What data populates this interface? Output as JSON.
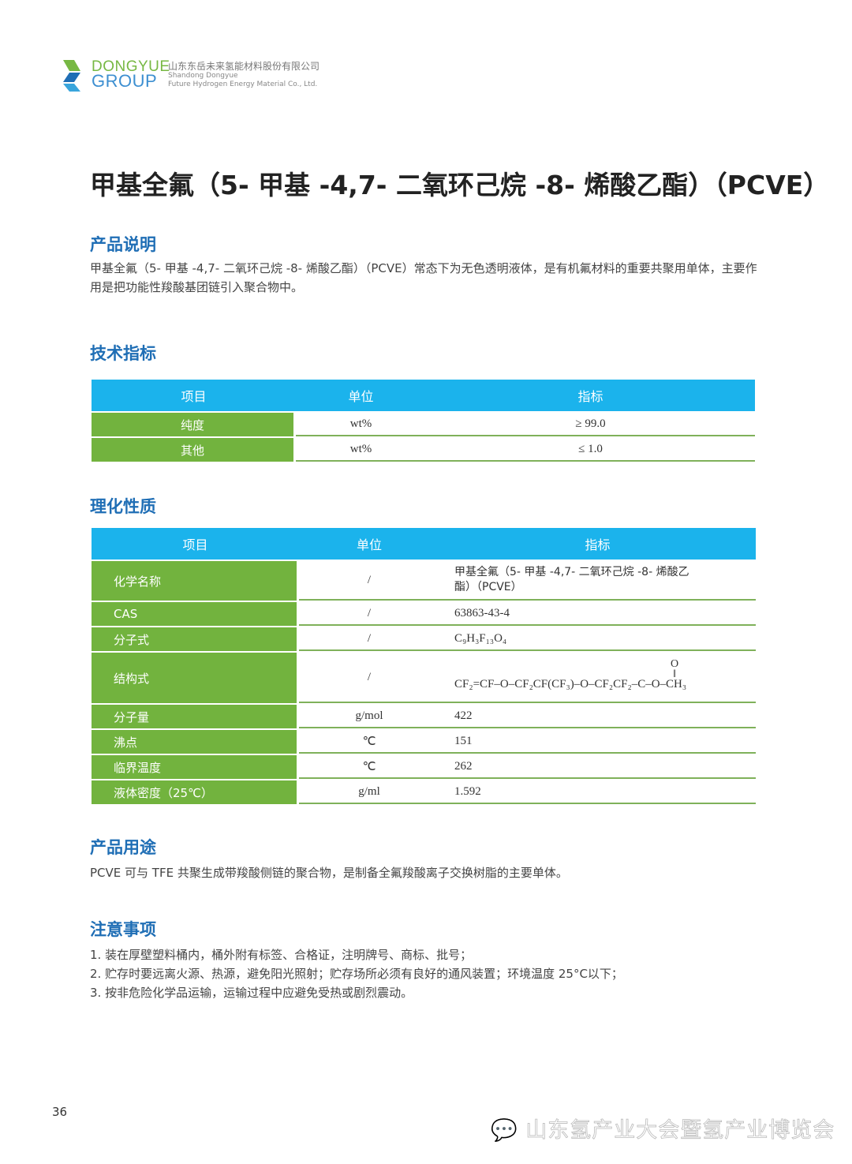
{
  "header": {
    "logo_line1": "DONGYUE",
    "logo_line2": "GROUP",
    "company_cn": "山东东岳未来氢能材料股份有限公司",
    "company_en1": "Shandong Dongyue",
    "company_en2": "Future Hydrogen Energy Material Co., Ltd.",
    "brand_colors": [
      "#77b843",
      "#3d8fd1"
    ]
  },
  "title": "甲基全氟（5- 甲基 -4,7- 二氧环己烷 -8- 烯酸乙酯）（PCVE）",
  "sections": {
    "description": {
      "heading": "产品说明",
      "text": "甲基全氟（5- 甲基 -4,7- 二氧环己烷 -8- 烯酸乙酯）（PCVE）常态下为无色透明液体，是有机氟材料的重要共聚用单体，主要作用是把功能性羧酸基团链引入聚合物中。"
    },
    "specs": {
      "heading": "技术指标",
      "columns": [
        "项目",
        "单位",
        "指标"
      ],
      "rows": [
        [
          "纯度",
          "wt%",
          "≥ 99.0"
        ],
        [
          "其他",
          "wt%",
          "≤ 1.0"
        ]
      ]
    },
    "properties": {
      "heading": "理化性质",
      "columns": [
        "项目",
        "单位",
        "指标"
      ],
      "rows": [
        [
          "化学名称",
          "/",
          "甲基全氟（5- 甲基 -4,7- 二氧环己烷 -8- 烯酸乙酯）（PCVE）"
        ],
        [
          "CAS",
          "/",
          "63863-43-4"
        ],
        [
          "分子式",
          "/",
          "C₉H₃F₁₃O₄"
        ],
        [
          "结构式",
          "/",
          "CF₂=CF–O–CF₂CF(CF₃)–O–CF₂CF₂–C–O–CH₃"
        ],
        [
          "分子量",
          "g/mol",
          "422"
        ],
        [
          "沸点",
          "℃",
          "151"
        ],
        [
          "临界温度",
          "℃",
          "262"
        ],
        [
          "液体密度（25℃）",
          "g/ml",
          "1.592"
        ]
      ],
      "carbonyl": "O"
    },
    "usage": {
      "heading": "产品用途",
      "text": "PCVE 可与 TFE 共聚生成带羧酸侧链的聚合物，是制备全氟羧酸离子交换树脂的主要单体。"
    },
    "notes": {
      "heading": "注意事项",
      "items": [
        "1. 装在厚壁塑料桶内，桶外附有标签、合格证，注明牌号、商标、批号；",
        "2. 贮存时要远离火源、热源，避免阳光照射；贮存场所必须有良好的通风装置；环境温度 25°C以下；",
        "3. 按非危险化学品运输，运输过程中应避免受热或剧烈震动。"
      ]
    }
  },
  "colors": {
    "table_header": "#1bb3ec",
    "item_cell": "#72b33e",
    "heading": "#1f6eb5"
  },
  "footer": {
    "page_number": "36",
    "watermark": "山东氢产业大会暨氢产业博览会"
  }
}
